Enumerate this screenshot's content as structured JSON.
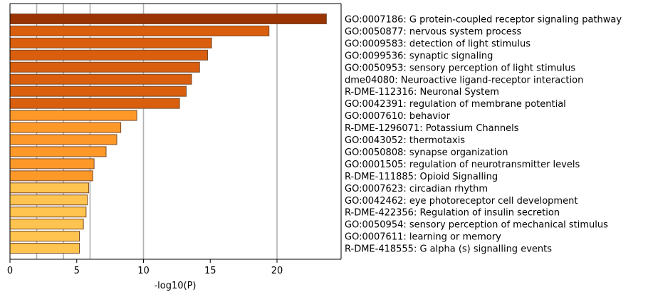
{
  "chart_data": {
    "type": "bar",
    "orientation": "horizontal",
    "xlabel": "-log10(P)",
    "ylabel": "",
    "title": "",
    "xlim": [
      0,
      24.8
    ],
    "xticks": [
      0,
      5,
      10,
      15,
      20
    ],
    "grid_x_lines": [
      2,
      4,
      6,
      10,
      20
    ],
    "category_labels_position": "right",
    "colors": {
      "dark": "#993404",
      "medium": "#d95f0e",
      "light": "#fe9929",
      "lightest": "#fec44f"
    },
    "categories": [
      "GO:0007186: G protein-coupled receptor signaling pathway",
      "GO:0050877: nervous system process",
      "GO:0009583: detection of light stimulus",
      "GO:0099536: synaptic signaling",
      "GO:0050953: sensory perception of light stimulus",
      "dme04080: Neuroactive ligand-receptor interaction",
      "R-DME-112316: Neuronal System",
      "GO:0042391: regulation of membrane potential",
      "GO:0007610: behavior",
      "R-DME-1296071: Potassium Channels",
      "GO:0043052: thermotaxis",
      "GO:0050808: synapse organization",
      "GO:0001505: regulation of neurotransmitter levels",
      "R-DME-111885: Opioid Signalling",
      "GO:0007623: circadian rhythm",
      "GO:0042462: eye photoreceptor cell development",
      "R-DME-422356: Regulation of insulin secretion",
      "GO:0050954: sensory perception of mechanical stimulus",
      "GO:0007611: learning or memory",
      "R-DME-418555: G alpha (s) signalling events"
    ],
    "values": [
      23.7,
      19.4,
      15.1,
      14.8,
      14.2,
      13.6,
      13.2,
      12.7,
      9.5,
      8.3,
      8.0,
      7.2,
      6.3,
      6.2,
      5.9,
      5.8,
      5.7,
      5.5,
      5.2,
      5.2
    ],
    "bar_color_groups": [
      "dark",
      "medium",
      "medium",
      "medium",
      "medium",
      "medium",
      "medium",
      "medium",
      "light",
      "light",
      "light",
      "light",
      "light",
      "light",
      "lightest",
      "lightest",
      "lightest",
      "lightest",
      "lightest",
      "lightest"
    ]
  }
}
